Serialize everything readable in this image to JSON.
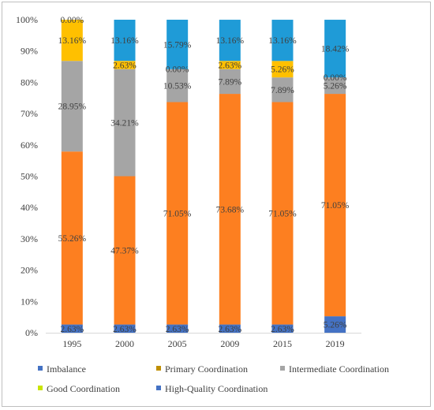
{
  "chart_data": {
    "type": "bar",
    "stacked": true,
    "percent": true,
    "categories": [
      "1995",
      "2000",
      "2005",
      "2009",
      "2015",
      "2019"
    ],
    "series": [
      {
        "name": "Imbalance",
        "color": "#4472c4",
        "values": [
          2.63,
          2.63,
          2.63,
          2.63,
          2.63,
          5.26
        ],
        "labels": [
          "2.63%",
          "2.63%",
          "2.63%",
          "2.63%",
          "2.63%",
          "5.26%"
        ]
      },
      {
        "name": "Primary Coordination",
        "color": "#fd7f20",
        "values": [
          55.26,
          47.37,
          71.05,
          73.68,
          71.05,
          71.05
        ],
        "labels": [
          "55.26%",
          "47.37%",
          "71.05%",
          "73.68%",
          "71.05%",
          "71.05%"
        ]
      },
      {
        "name": "Intermediate Coordination",
        "color": "#a5a5a5",
        "values": [
          28.95,
          34.21,
          10.53,
          7.89,
          7.89,
          5.26
        ],
        "labels": [
          "28.95%",
          "34.21%",
          "10.53%",
          "7.89%",
          "7.89%",
          "5.26%"
        ]
      },
      {
        "name": "Good Coordination",
        "color": "#ffc000",
        "values": [
          13.16,
          2.63,
          0.0,
          2.63,
          5.26,
          0.0
        ],
        "labels": [
          "13.16%",
          "2.63%",
          "0.00%",
          "2.63%",
          "5.26%",
          "0.00%"
        ]
      },
      {
        "name": "High-Quality Coordination",
        "color": "#1f9bd7",
        "values": [
          0.0,
          13.16,
          15.79,
          13.16,
          13.16,
          18.42
        ],
        "labels": [
          "0.00%",
          "13.16%",
          "15.79%",
          "13.16%",
          "13.16%",
          "18.42%"
        ]
      }
    ],
    "yticks": [
      "0%",
      "10%",
      "20%",
      "30%",
      "40%",
      "50%",
      "60%",
      "70%",
      "80%",
      "90%",
      "100%"
    ],
    "ylim": [
      0,
      100
    ],
    "legend_position": "bottom",
    "legend_swatch_colors": [
      "#4472c4",
      "#bf8f00",
      "#a5a5a5",
      "#c9e400",
      "#4472c4"
    ],
    "grid": false
  }
}
